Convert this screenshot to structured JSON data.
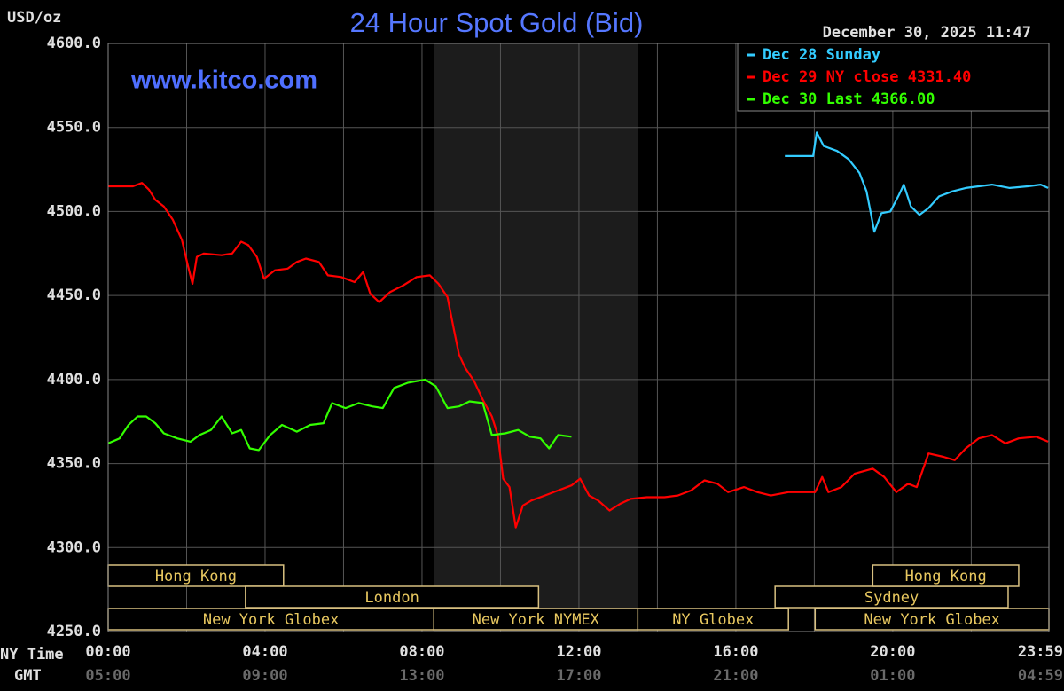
{
  "chart_data": {
    "type": "line",
    "title": "24 Hour Spot Gold (Bid)",
    "y_label": "USD/oz",
    "watermark": "www.kitco.com",
    "timestamp": "December 30, 2025 11:47",
    "x_row_labels": [
      "NY Time",
      "GMT"
    ],
    "xlim": [
      0,
      23.98
    ],
    "ylim": [
      4250,
      4600
    ],
    "yticks": [
      {
        "value": 4600,
        "label": "4600.0"
      },
      {
        "value": 4550,
        "label": "4550.0"
      },
      {
        "value": 4500,
        "label": "4500.0"
      },
      {
        "value": 4450,
        "label": "4450.0"
      },
      {
        "value": 4400,
        "label": "4400.0"
      },
      {
        "value": 4350,
        "label": "4350.0"
      },
      {
        "value": 4300,
        "label": "4300.0"
      },
      {
        "value": 4250,
        "label": "4250.0"
      }
    ],
    "xticks": [
      {
        "value": 0,
        "label": "00:00"
      },
      {
        "value": 4,
        "label": "04:00"
      },
      {
        "value": 8,
        "label": "08:00"
      },
      {
        "value": 12,
        "label": "12:00"
      },
      {
        "value": 16,
        "label": "16:00"
      },
      {
        "value": 20,
        "label": "20:00"
      },
      {
        "value": 23.98,
        "label": "23:59"
      }
    ],
    "xticks_gmt": [
      {
        "value": 0,
        "label": "05:00"
      },
      {
        "value": 4,
        "label": "09:00"
      },
      {
        "value": 8,
        "label": "13:00"
      },
      {
        "value": 12,
        "label": "17:00"
      },
      {
        "value": 16,
        "label": "21:00"
      },
      {
        "value": 20,
        "label": "01:00"
      },
      {
        "value": 23.98,
        "label": "04:59"
      }
    ],
    "xgrid": [
      0,
      2,
      4,
      6,
      8,
      10,
      12,
      14,
      16,
      18,
      20,
      22
    ],
    "grid": true,
    "legend": "top-right",
    "sessions": [
      {
        "label": "Hong Kong",
        "start": 0,
        "end": 4.47
      },
      {
        "label": "London",
        "start": 3.5,
        "end": 10.97
      },
      {
        "label": "New York Globex",
        "start": 0,
        "end": 8.3
      },
      {
        "label": "New York NYMEX",
        "start": 8.3,
        "end": 13.5
      },
      {
        "label": "NY Globex",
        "start": 13.5,
        "end": 17.34
      },
      {
        "label": "Sydney",
        "start": 17.0,
        "end": 22.94
      },
      {
        "label": "Hong Kong",
        "start": 19.49,
        "end": 23.21
      },
      {
        "label": "New York Globex",
        "start": 18.02,
        "end": 23.98
      }
    ],
    "series": [
      {
        "name": "Dec 28 Sunday",
        "color": "#33ccff",
        "x": [
          17.25,
          17.97,
          18.06,
          18.24,
          18.58,
          18.88,
          19.15,
          19.33,
          19.44,
          19.53,
          19.71,
          19.94,
          20.16,
          20.28,
          20.46,
          20.68,
          20.91,
          21.18,
          21.52,
          21.86,
          22.19,
          22.53,
          22.98,
          23.44,
          23.77,
          23.96
        ],
        "values": [
          4533,
          4533,
          4547,
          4539,
          4536,
          4531,
          4523,
          4512,
          4499,
          4488,
          4499,
          4500,
          4510,
          4516,
          4503,
          4498,
          4502,
          4509,
          4512,
          4514,
          4515,
          4516,
          4514,
          4515,
          4516,
          4514
        ]
      },
      {
        "name": "Dec 29 NY close 4331.40",
        "color": "#ff0000",
        "x": [
          0,
          0.63,
          0.86,
          1.04,
          1.2,
          1.42,
          1.65,
          1.88,
          2.03,
          2.15,
          2.26,
          2.44,
          2.89,
          3.16,
          3.39,
          3.57,
          3.79,
          3.97,
          4.25,
          4.58,
          4.81,
          5.04,
          5.37,
          5.6,
          5.94,
          6.28,
          6.5,
          6.68,
          6.91,
          7.18,
          7.52,
          7.86,
          8.2,
          8.42,
          8.65,
          8.81,
          8.94,
          9.1,
          9.33,
          9.55,
          9.78,
          9.93,
          10.07,
          10.23,
          10.39,
          10.57,
          10.79,
          11.13,
          11.47,
          11.81,
          12.03,
          12.26,
          12.49,
          12.78,
          13.05,
          13.32,
          13.73,
          14.18,
          14.52,
          14.86,
          15.2,
          15.53,
          15.8,
          16.21,
          16.55,
          16.89,
          17.34,
          18.02,
          18.2,
          18.36,
          18.69,
          19.03,
          19.49,
          19.78,
          20.09,
          20.39,
          20.61,
          20.91,
          21.29,
          21.58,
          21.86,
          22.19,
          22.53,
          22.87,
          23.21,
          23.66,
          23.96
        ],
        "values": [
          4515,
          4515,
          4517,
          4513,
          4507,
          4503,
          4495,
          4483,
          4468,
          4457,
          4473,
          4475,
          4474,
          4475,
          4482,
          4480,
          4473,
          4460,
          4465,
          4466,
          4470,
          4472,
          4470,
          4462,
          4461,
          4458,
          4464,
          4451,
          4446,
          4452,
          4456,
          4461,
          4462,
          4457,
          4449,
          4430,
          4415,
          4407,
          4399,
          4388,
          4378,
          4367,
          4341,
          4336,
          4312,
          4325,
          4328,
          4331,
          4334,
          4337,
          4341,
          4331,
          4328,
          4322,
          4326,
          4329,
          4330,
          4330,
          4331,
          4334,
          4340,
          4338,
          4333,
          4336,
          4333,
          4331,
          4333,
          4333,
          4342,
          4333,
          4336,
          4344,
          4347,
          4342,
          4333,
          4338,
          4336,
          4356,
          4354,
          4352,
          4359,
          4365,
          4367,
          4362,
          4365,
          4366,
          4363
        ]
      },
      {
        "name": "Dec 30 Last 4366.00",
        "color": "#33ff00",
        "x": [
          0,
          0.29,
          0.52,
          0.75,
          0.97,
          1.2,
          1.42,
          1.76,
          2.1,
          2.33,
          2.62,
          2.89,
          3.16,
          3.39,
          3.61,
          3.84,
          4.13,
          4.43,
          4.81,
          5.15,
          5.49,
          5.71,
          6.05,
          6.39,
          6.73,
          7.0,
          7.29,
          7.63,
          8.08,
          8.35,
          8.65,
          8.94,
          9.21,
          9.55,
          9.78,
          10.12,
          10.45,
          10.75,
          11.02,
          11.24,
          11.47,
          11.81
        ],
        "values": [
          4362,
          4365,
          4373,
          4378,
          4378,
          4374,
          4368,
          4365,
          4363,
          4367,
          4370,
          4378,
          4368,
          4370,
          4359,
          4358,
          4367,
          4373,
          4369,
          4373,
          4374,
          4386,
          4383,
          4386,
          4384,
          4383,
          4395,
          4398,
          4400,
          4396,
          4383,
          4384,
          4387,
          4386,
          4367,
          4368,
          4370,
          4366,
          4365,
          4359,
          4367,
          4366
        ]
      }
    ]
  }
}
